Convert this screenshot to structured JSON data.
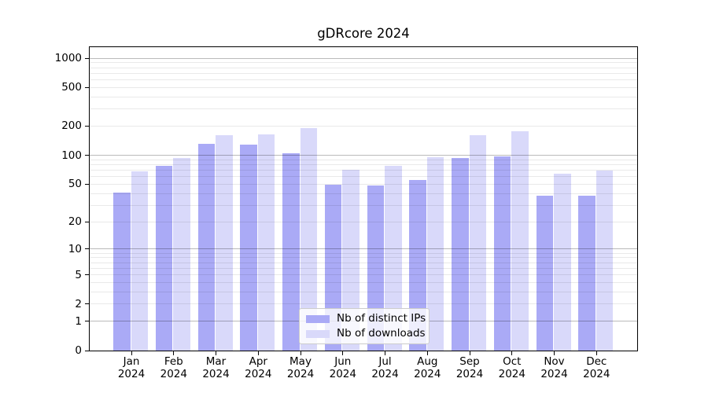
{
  "chart_data": {
    "type": "bar",
    "title": "gDRcore 2024",
    "categories": [
      "Jan",
      "Feb",
      "Mar",
      "Apr",
      "May",
      "Jun",
      "Jul",
      "Aug",
      "Sep",
      "Oct",
      "Nov",
      "Dec"
    ],
    "x_year_label": "2024",
    "series": [
      {
        "name": "Nb of distinct IPs",
        "color": "#aaaaf6",
        "values": [
          41,
          77,
          132,
          130,
          105,
          49,
          48,
          55,
          94,
          97,
          38,
          38
        ]
      },
      {
        "name": "Nb of downloads",
        "color": "#d9d9fa",
        "values": [
          68,
          93,
          160,
          165,
          190,
          71,
          78,
          96,
          160,
          178,
          64,
          69
        ]
      }
    ],
    "yscale": "log1p",
    "yticks": [
      0,
      1,
      2,
      5,
      10,
      20,
      50,
      100,
      200,
      500,
      1000
    ],
    "major_gridlines": [
      1,
      10,
      100,
      1000
    ],
    "minor_gridlines": [
      3,
      4,
      6,
      7,
      8,
      9,
      30,
      40,
      60,
      70,
      80,
      90,
      300,
      400,
      600,
      700,
      800,
      900
    ],
    "ylim": [
      0,
      1280
    ],
    "grid": true,
    "legend_position": "lower center",
    "colors": {
      "axis": "#000000",
      "major_grid": "#bababa",
      "minor_grid": "#e9e9e9",
      "background": "#ffffff"
    }
  }
}
